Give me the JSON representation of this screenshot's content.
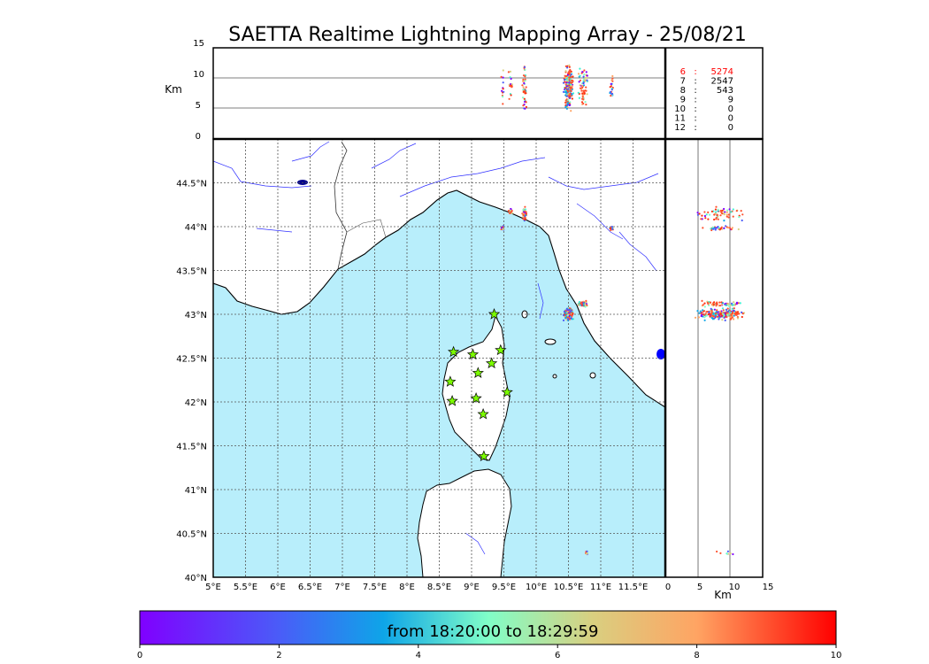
{
  "title": "SAETTA Realtime Lightning Mapping Array - 25/08/21",
  "alt_panel": {
    "unit_label": "Km",
    "ticks": [
      "15",
      "10",
      "5",
      "0"
    ],
    "values": [
      0,
      5,
      10,
      15
    ]
  },
  "side_panel": {
    "unit_label": "Km",
    "ticks": [
      "0",
      "5",
      "10",
      "15"
    ],
    "values": [
      0,
      5,
      10,
      15
    ]
  },
  "counts": [
    {
      "level": "6",
      "sep": ":",
      "count": "5274",
      "color": "#ff0000"
    },
    {
      "level": "7",
      "sep": ":",
      "count": "2547",
      "color": "#000000"
    },
    {
      "level": "8",
      "sep": ":",
      "count": "543",
      "color": "#000000"
    },
    {
      "level": "9",
      "sep": ":",
      "count": "9",
      "color": "#000000"
    },
    {
      "level": "10",
      "sep": ":",
      "count": "0",
      "color": "#000000"
    },
    {
      "level": "11",
      "sep": ":",
      "count": "0",
      "color": "#000000"
    },
    {
      "level": "12",
      "sep": ":",
      "count": "0",
      "color": "#000000"
    }
  ],
  "map": {
    "lon_range": [
      5,
      12
    ],
    "lat_range": [
      40,
      45
    ],
    "lon_ticks": [
      "5°E",
      "5.5°E",
      "6°E",
      "6.5°E",
      "7°E",
      "7.5°E",
      "8°E",
      "8.5°E",
      "9°E",
      "9.5°E",
      "10°E",
      "10.5°E",
      "11°E",
      "11.5°E"
    ],
    "lon_tick_values": [
      5,
      5.5,
      6,
      6.5,
      7,
      7.5,
      8,
      8.5,
      9,
      9.5,
      10,
      10.5,
      11,
      11.5
    ],
    "lat_ticks": [
      "44.5°N",
      "44°N",
      "43.5°N",
      "43°N",
      "42.5°N",
      "42°N",
      "41.5°N",
      "41°N",
      "40.5°N",
      "40°N"
    ],
    "lat_tick_values": [
      44.5,
      44,
      43.5,
      43,
      42.5,
      42,
      41.5,
      41,
      40.5,
      40
    ],
    "sea_color": "#b8eefb",
    "grid": "dotted",
    "stations": [
      {
        "lon": 9.35,
        "lat": 43.0
      },
      {
        "lon": 8.72,
        "lat": 42.57
      },
      {
        "lon": 9.02,
        "lat": 42.54
      },
      {
        "lon": 9.45,
        "lat": 42.59
      },
      {
        "lon": 9.31,
        "lat": 42.44
      },
      {
        "lon": 9.1,
        "lat": 42.33
      },
      {
        "lon": 8.67,
        "lat": 42.23
      },
      {
        "lon": 9.55,
        "lat": 42.11
      },
      {
        "lon": 8.7,
        "lat": 42.01
      },
      {
        "lon": 9.07,
        "lat": 42.04
      },
      {
        "lon": 9.18,
        "lat": 41.86
      },
      {
        "lon": 9.19,
        "lat": 41.38
      }
    ],
    "clusters": [
      {
        "lon": 10.5,
        "lat": 43.0,
        "lon_spread": 0.09,
        "lat_spread": 0.08,
        "n": 220
      },
      {
        "lon": 10.72,
        "lat": 43.12,
        "lon_spread": 0.1,
        "lat_spread": 0.04,
        "n": 60
      },
      {
        "lon": 9.82,
        "lat": 44.14,
        "lon_spread": 0.05,
        "lat_spread": 0.1,
        "n": 50
      },
      {
        "lon": 9.6,
        "lat": 44.18,
        "lon_spread": 0.05,
        "lat_spread": 0.04,
        "n": 15
      },
      {
        "lon": 9.48,
        "lat": 43.98,
        "lon_spread": 0.03,
        "lat_spread": 0.03,
        "n": 12
      },
      {
        "lon": 11.17,
        "lat": 43.98,
        "lon_spread": 0.04,
        "lat_spread": 0.03,
        "n": 20
      },
      {
        "lon": 10.78,
        "lat": 40.28,
        "lon_spread": 0.02,
        "lat_spread": 0.03,
        "n": 8
      }
    ]
  },
  "colorbar": {
    "label": "from 18:20:00 to 18:29:59",
    "ticks": [
      "0",
      "2",
      "4",
      "6",
      "8",
      "10"
    ],
    "tick_values": [
      0,
      2,
      4,
      6,
      8,
      10
    ],
    "range": [
      0,
      10
    ],
    "colormap": "rainbow"
  }
}
